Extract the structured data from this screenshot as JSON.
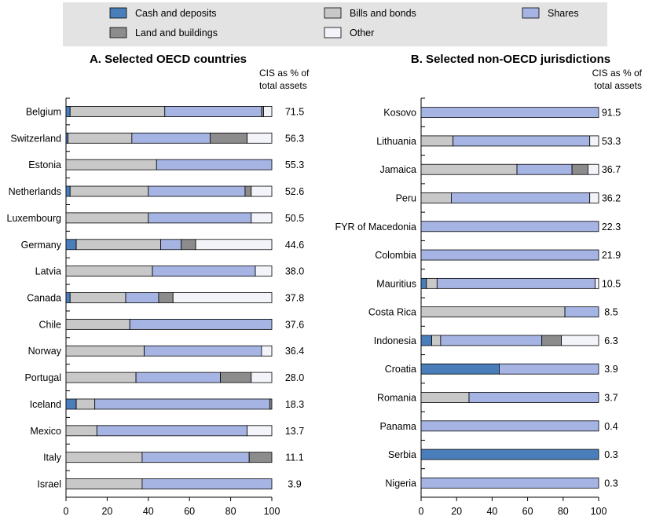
{
  "colors": {
    "cash": "#4a7ebb",
    "bills": "#c8c8c8",
    "shares": "#a6b4e4",
    "land": "#8c8c8c",
    "other": "#f2f4fa",
    "legend_bg": "#e3e3e3",
    "axis": "#000000"
  },
  "legend": [
    {
      "key": "cash",
      "label": "Cash and deposits",
      "icon": "swatch-cash"
    },
    {
      "key": "bills",
      "label": "Bills and bonds",
      "icon": "swatch-bills"
    },
    {
      "key": "shares",
      "label": "Shares",
      "icon": "swatch-shares"
    },
    {
      "key": "land",
      "label": "Land and buildings",
      "icon": "swatch-land"
    },
    {
      "key": "other",
      "label": "Other",
      "icon": "swatch-other"
    }
  ],
  "chart_data": [
    {
      "type": "bar",
      "orientation": "horizontal",
      "stacked": true,
      "title": "A. Selected OECD countries",
      "value_header": "CIS as % of total assets",
      "xlim": [
        0,
        100
      ],
      "xticks": [
        0,
        20,
        40,
        60,
        80,
        100
      ],
      "categories": [
        "Belgium",
        "Switzerland",
        "Estonia",
        "Netherlands",
        "Luxembourg",
        "Germany",
        "Latvia",
        "Canada",
        "Chile",
        "Norway",
        "Portugal",
        "Iceland",
        "Mexico",
        "Italy",
        "Israel"
      ],
      "series": [
        {
          "name": "Cash and deposits",
          "key": "cash",
          "values": [
            2,
            1,
            0,
            2,
            0,
            5,
            0,
            2,
            0,
            0,
            0,
            5,
            0,
            0,
            0
          ]
        },
        {
          "name": "Bills and bonds",
          "key": "bills",
          "values": [
            46,
            31,
            44,
            38,
            40,
            41,
            42,
            27,
            31,
            38,
            34,
            9,
            15,
            37,
            37
          ]
        },
        {
          "name": "Shares",
          "key": "shares",
          "values": [
            47,
            38,
            56,
            47,
            50,
            10,
            50,
            16,
            69,
            57,
            41,
            85,
            73,
            52,
            63
          ]
        },
        {
          "name": "Land and buildings",
          "key": "land",
          "values": [
            1,
            18,
            0,
            3,
            0,
            7,
            0,
            7,
            0,
            0,
            15,
            1,
            0,
            11,
            0
          ]
        },
        {
          "name": "Other",
          "key": "other",
          "values": [
            4,
            12,
            0,
            10,
            10,
            37,
            8,
            48,
            0,
            5,
            10,
            0,
            12,
            0,
            0
          ]
        }
      ],
      "cis_values": [
        "71.5",
        "56.3",
        "55.3",
        "52.6",
        "50.5",
        "44.6",
        "38.0",
        "37.8",
        "37.6",
        "36.4",
        "28.0",
        "18.3",
        "13.7",
        "11.1",
        "3.9"
      ]
    },
    {
      "type": "bar",
      "orientation": "horizontal",
      "stacked": true,
      "title": "B. Selected non-OECD jurisdictions",
      "value_header": "CIS as % of total assets",
      "xlim": [
        0,
        100
      ],
      "xticks": [
        0,
        20,
        40,
        60,
        80,
        100
      ],
      "categories": [
        "Kosovo",
        "Lithuania",
        "Jamaica",
        "Peru",
        "FYR of Macedonia",
        "Colombia",
        "Mauritius",
        "Costa Rica",
        "Indonesia",
        "Croatia",
        "Romania",
        "Panama",
        "Serbia",
        "Nigeria"
      ],
      "series": [
        {
          "name": "Cash and deposits",
          "key": "cash",
          "values": [
            0,
            0,
            0,
            0,
            0,
            0,
            3,
            0,
            6,
            44,
            0,
            0,
            100,
            0
          ]
        },
        {
          "name": "Bills and bonds",
          "key": "bills",
          "values": [
            0,
            18,
            54,
            17,
            0,
            0,
            6,
            81,
            5,
            0,
            27,
            0,
            0,
            0
          ]
        },
        {
          "name": "Shares",
          "key": "shares",
          "values": [
            100,
            77,
            31,
            78,
            100,
            100,
            89,
            19,
            57,
            56,
            73,
            100,
            0,
            100
          ]
        },
        {
          "name": "Land and buildings",
          "key": "land",
          "values": [
            0,
            0,
            9,
            0,
            0,
            0,
            0,
            0,
            11,
            0,
            0,
            0,
            0,
            0
          ]
        },
        {
          "name": "Other",
          "key": "other",
          "values": [
            0,
            5,
            6,
            5,
            0,
            0,
            2,
            0,
            21,
            0,
            0,
            0,
            0,
            0
          ]
        }
      ],
      "cis_values": [
        "91.5",
        "53.3",
        "36.7",
        "36.2",
        "22.3",
        "21.9",
        "10.5",
        "8.5",
        "6.3",
        "3.9",
        "3.7",
        "0.4",
        "0.3",
        "0.3"
      ]
    }
  ]
}
